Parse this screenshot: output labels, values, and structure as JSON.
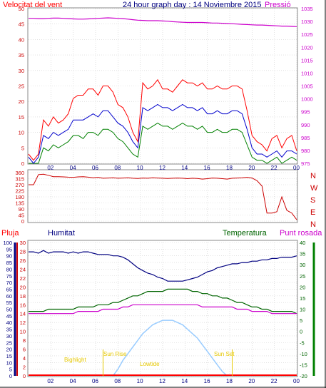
{
  "colors": {
    "wind_gust": "#ff0000",
    "wind_avg": "#0000cc",
    "wind_low": "#008000",
    "pressure": "#cc00cc",
    "direction": "#cc0000",
    "humidity": "#000080",
    "temperature": "#006400",
    "dewpoint": "#cc00cc",
    "solar": "#99ccff",
    "rain": "#ff0000",
    "sun_labels": "#e6c800",
    "axis_left_rain": "#cc0000",
    "axis_humidity": "#000080"
  },
  "chart_data": [
    {
      "type": "line",
      "titles": {
        "left": "Velocitat del vent",
        "center": "24 hour graph day : 14 Noviembre 2015",
        "right": "Pressió"
      },
      "x_ticks": [
        "02",
        "04",
        "06",
        "08",
        "10",
        "12",
        "14",
        "16",
        "18",
        "20",
        "22",
        "00"
      ],
      "y_left": {
        "min": 0,
        "max": 50,
        "ticks": [
          0,
          5,
          10,
          15,
          20,
          25,
          30,
          35,
          40,
          45,
          50
        ]
      },
      "y_right": {
        "min": 975,
        "max": 1035,
        "ticks": [
          975,
          980,
          985,
          990,
          995,
          1000,
          1005,
          1010,
          1015,
          1020,
          1025,
          1030,
          1035
        ]
      },
      "grid": true,
      "series": [
        {
          "key": "gust",
          "axis": "left",
          "values": [
            3,
            1,
            3,
            14,
            12,
            15,
            13,
            14,
            16,
            21,
            22,
            22,
            24,
            24,
            22,
            25,
            25,
            23,
            19,
            18,
            15,
            10,
            7,
            26,
            24,
            25,
            27,
            24,
            24,
            23,
            25,
            27,
            26,
            26,
            25,
            26,
            24,
            24,
            25,
            24,
            24,
            25,
            25,
            24,
            17,
            9,
            7,
            6,
            4,
            8,
            9,
            5,
            8,
            9,
            4
          ]
        },
        {
          "key": "avg",
          "axis": "left",
          "values": [
            2,
            0,
            2,
            9,
            8,
            10,
            9,
            10,
            11,
            14,
            14,
            14,
            15,
            16,
            15,
            17,
            17,
            15,
            13,
            12,
            10,
            7,
            5,
            18,
            17,
            18,
            19,
            18,
            18,
            17,
            18,
            19,
            18,
            18,
            17,
            18,
            16,
            16,
            17,
            16,
            16,
            17,
            17,
            16,
            11,
            5,
            3,
            3,
            2,
            3,
            4,
            2,
            4,
            4,
            3
          ]
        },
        {
          "key": "low",
          "axis": "left",
          "values": [
            0,
            0,
            0,
            5,
            4,
            6,
            5,
            6,
            7,
            9,
            9,
            8,
            10,
            10,
            9,
            11,
            11,
            10,
            8,
            7,
            5,
            3,
            2,
            12,
            11,
            12,
            13,
            12,
            12,
            11,
            12,
            13,
            12,
            12,
            11,
            12,
            10,
            10,
            11,
            10,
            10,
            11,
            11,
            10,
            6,
            2,
            1,
            1,
            0,
            1,
            2,
            0,
            1,
            2,
            1
          ]
        },
        {
          "key": "pressure",
          "axis": "right",
          "values": [
            1031.2,
            1031.2,
            1031.1,
            1031.1,
            1031.2,
            1031.3,
            1031.3,
            1031.2,
            1031.1,
            1031.0,
            1030.9,
            1030.9,
            1031.0,
            1031.1,
            1031.2,
            1031.3,
            1031.4,
            1031.3,
            1031.2,
            1031.1,
            1030.9,
            1030.7,
            1030.5,
            1030.4,
            1030.3,
            1030.3,
            1030.3,
            1030.2,
            1030.1,
            1029.9,
            1029.8,
            1029.7,
            1029.6,
            1029.6,
            1029.6,
            1029.6,
            1029.5,
            1029.4,
            1029.4,
            1029.3,
            1029.2,
            1029.1,
            1029.0,
            1028.9,
            1028.8,
            1028.7,
            1028.6,
            1028.6,
            1028.5,
            1028.4,
            1028.3,
            1028.2,
            1028.2,
            1028.1,
            1028.0
          ]
        }
      ]
    },
    {
      "type": "line",
      "direction_labels": [
        "N",
        "W",
        "S",
        "E",
        "N"
      ],
      "y_left": {
        "min": 0,
        "max": 360,
        "ticks": [
          0,
          45,
          90,
          135,
          180,
          225,
          270,
          315,
          360
        ]
      },
      "grid": true,
      "series": [
        {
          "key": "direction",
          "values": [
            270,
            270,
            345,
            348,
            340,
            330,
            330,
            328,
            326,
            325,
            328,
            330,
            326,
            322,
            325,
            318,
            320,
            322,
            318,
            320,
            322,
            318,
            316,
            320,
            318,
            322,
            320,
            318,
            316,
            318,
            320,
            318,
            315,
            318,
            316,
            312,
            315,
            320,
            318,
            315,
            312,
            318,
            320,
            322,
            325,
            320,
            300,
            260,
            60,
            60,
            70,
            180,
            80,
            60,
            10
          ]
        }
      ]
    },
    {
      "type": "line",
      "titles": {
        "rain": "Pluja",
        "humidity": "Humitat",
        "temperature": "Temperatura",
        "dewpoint": "Punt rosada"
      },
      "axis_rain": {
        "min": 0,
        "max": 30,
        "ticks": [
          0,
          2,
          4,
          6,
          8,
          10,
          12,
          14,
          16,
          18,
          20,
          22,
          24,
          26,
          28,
          30
        ]
      },
      "axis_humidity": {
        "min": 0,
        "max": 100,
        "ticks": [
          0,
          5,
          10,
          15,
          20,
          25,
          30,
          35,
          40,
          45,
          50,
          55,
          60,
          65,
          70,
          75,
          80,
          85,
          90,
          95,
          100
        ]
      },
      "axis_temp": {
        "min": -20,
        "max": 40,
        "ticks": [
          -20,
          -15,
          -10,
          -5,
          0,
          5,
          10,
          15,
          20,
          25,
          30,
          35,
          40
        ]
      },
      "sun_labels": {
        "bighlight": "Bighlight",
        "sunrise": "Sun Rise",
        "lowtide": "Lowtide",
        "sunset": "Sun Set"
      },
      "series": [
        {
          "key": "humidity",
          "axis": "humidity",
          "values": [
            93,
            93,
            92,
            94,
            92,
            93,
            93,
            93,
            92,
            93,
            92,
            93,
            93,
            92,
            91,
            91,
            91,
            90,
            90,
            89,
            87,
            84,
            81,
            79,
            77,
            76,
            74,
            73,
            71,
            71,
            71,
            71,
            72,
            73,
            74,
            76,
            78,
            79,
            81,
            82,
            83,
            84,
            84,
            85,
            85,
            86,
            86,
            87,
            87,
            88,
            88,
            89,
            89,
            89,
            90
          ]
        },
        {
          "key": "temperature",
          "axis": "temp",
          "values": [
            9,
            9,
            9,
            9,
            10,
            10,
            10,
            10,
            10,
            10,
            11,
            11,
            11,
            11,
            12,
            12,
            12,
            13,
            13,
            14,
            15,
            16,
            16,
            17,
            18,
            18,
            18,
            18,
            19,
            19,
            19,
            19,
            19,
            18,
            18,
            17,
            17,
            16,
            16,
            15,
            15,
            14,
            13,
            13,
            12,
            11,
            11,
            10,
            10,
            9,
            9,
            9,
            9,
            9,
            8
          ]
        },
        {
          "key": "dewpoint",
          "axis": "temp",
          "values": [
            8,
            8,
            8,
            8,
            8,
            8,
            8,
            8,
            8,
            8,
            9,
            9,
            9,
            9,
            9,
            10,
            10,
            10,
            10,
            11,
            11,
            12,
            12,
            12,
            12,
            12,
            12,
            12,
            12,
            12,
            12,
            12,
            12,
            12,
            12,
            11,
            11,
            11,
            11,
            11,
            11,
            11,
            10,
            10,
            10,
            9,
            9,
            9,
            9,
            8,
            8,
            8,
            8,
            8,
            8
          ]
        },
        {
          "key": "solar",
          "axis": "temp",
          "values": [
            null,
            null,
            null,
            null,
            null,
            null,
            null,
            null,
            null,
            null,
            null,
            null,
            null,
            null,
            null,
            null,
            null,
            -20,
            -17,
            -13,
            -10,
            -7,
            -4,
            -1,
            1,
            3,
            4,
            5,
            5,
            5,
            4,
            3,
            1,
            -1,
            -3,
            -6,
            -9,
            -12,
            -15,
            -18,
            -20,
            null,
            null,
            null,
            null,
            null,
            null,
            null,
            null,
            null,
            null,
            null,
            null,
            null,
            null
          ]
        },
        {
          "key": "rain",
          "axis": "rain",
          "values": [
            0,
            0,
            0,
            0,
            0,
            0,
            0,
            0,
            0,
            0,
            0,
            0,
            0,
            0,
            0,
            0,
            0,
            0,
            0,
            0,
            0,
            0,
            0,
            0,
            0,
            0,
            0,
            0,
            0,
            0,
            0,
            0,
            0,
            0,
            0,
            0,
            0,
            0,
            0,
            0,
            0,
            0,
            0,
            0,
            0,
            0,
            0,
            0,
            0,
            0,
            0,
            0,
            0,
            0,
            0
          ]
        }
      ]
    }
  ]
}
